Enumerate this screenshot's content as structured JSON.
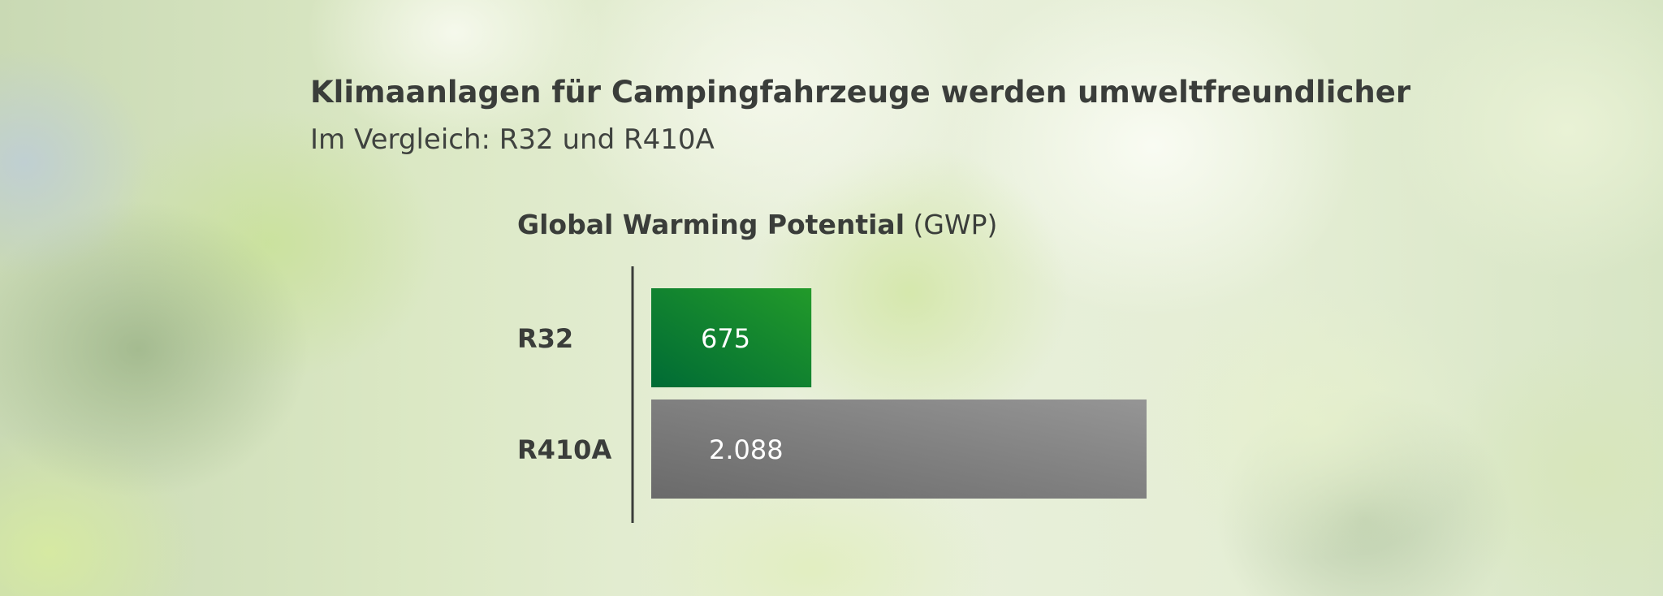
{
  "header": {
    "title": "Klimaanlagen für Campingfahrzeuge werden umweltfreundlicher",
    "subtitle": "Im Vergleich: R32 und R410A"
  },
  "chart_heading": {
    "bold": "Global Warming Potential",
    "light": "(GWP)"
  },
  "chart_data": {
    "type": "bar",
    "orientation": "horizontal",
    "categories": [
      "R32",
      "R410A"
    ],
    "values": [
      675,
      2088
    ],
    "value_labels": [
      "675",
      "2.088"
    ],
    "title": "Global Warming Potential (GWP)",
    "xlabel": "",
    "ylabel": "",
    "grid": false,
    "legend": "none",
    "bar_colors": [
      [
        "#006b35",
        "#229a2a"
      ],
      [
        "#6a6a6a",
        "#959595"
      ]
    ],
    "axis_color": "#3a3d3a"
  }
}
